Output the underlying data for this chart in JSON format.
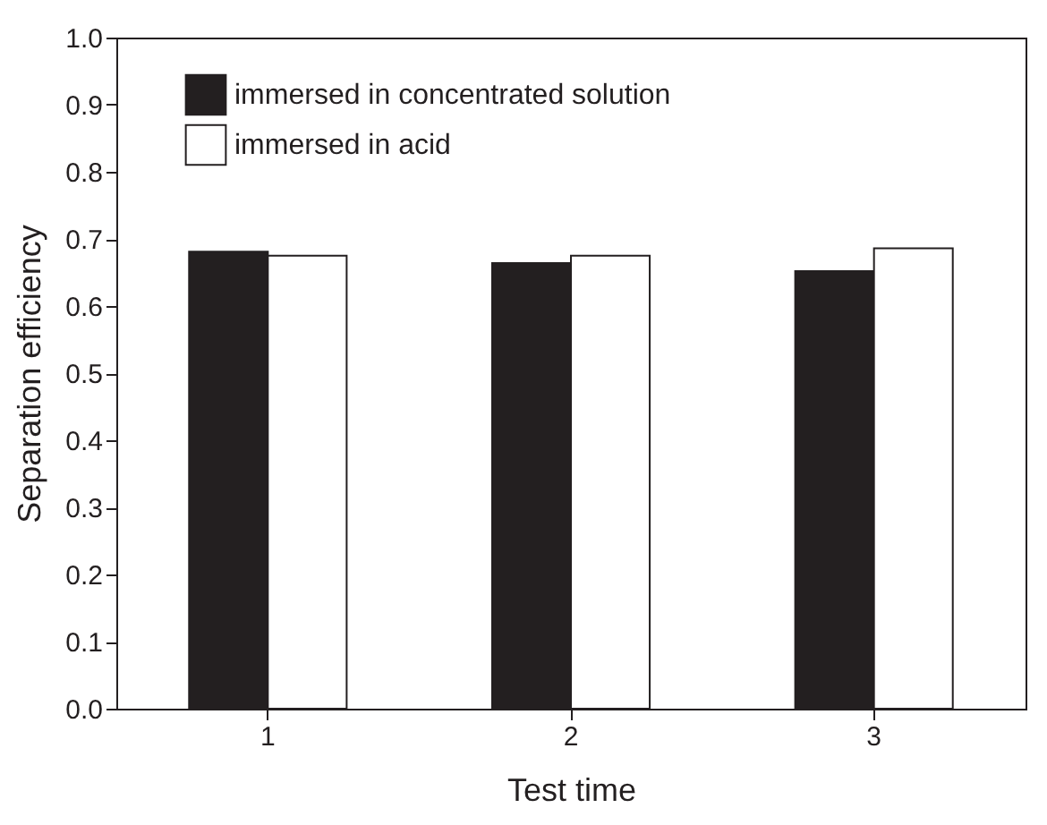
{
  "chart_data": {
    "type": "bar",
    "xlabel": "Test time",
    "ylabel": "Separation efficiency",
    "categories": [
      "1",
      "2",
      "3"
    ],
    "series": [
      {
        "name": "immersed in concentrated solution",
        "color": "#231f20",
        "values": [
          0.681,
          0.664,
          0.652
        ]
      },
      {
        "name": "immersed in acid",
        "color": "#ffffff",
        "values": [
          0.675,
          0.675,
          0.686
        ]
      }
    ],
    "ylim": [
      0,
      1
    ],
    "yticks": [
      {
        "value": 0,
        "label": "0.0"
      },
      0.1,
      0.2,
      0.3,
      0.4,
      0.5,
      0.6,
      0.7,
      0.8,
      0.9,
      {
        "value": 1,
        "label": "1.0"
      }
    ],
    "legend": "top left",
    "grid": false
  }
}
